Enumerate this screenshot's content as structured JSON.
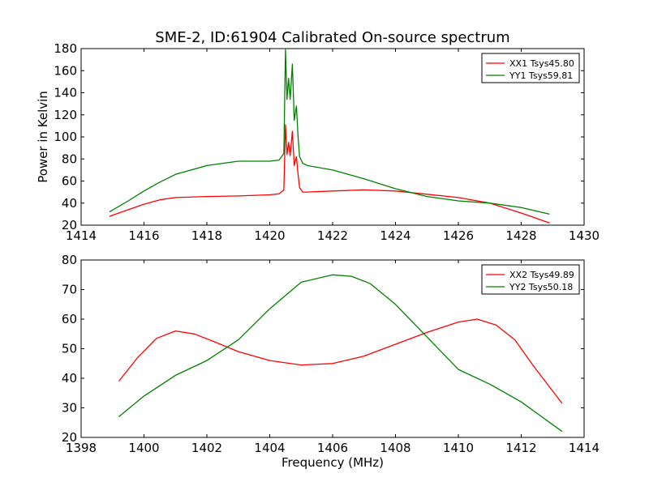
{
  "figure": {
    "title": "SME-2, ID:61904 Calibrated On-source spectrum",
    "xlabel": "Frequency (MHz)",
    "ylabel": "Power in Kelvin"
  },
  "chart_data": [
    {
      "type": "line",
      "title": "SME-2, ID:61904 Calibrated On-source spectrum",
      "xlabel": "",
      "ylabel": "Power in Kelvin",
      "xlim": [
        1414,
        1430
      ],
      "ylim": [
        20,
        180
      ],
      "xticks": [
        1414,
        1416,
        1418,
        1420,
        1422,
        1424,
        1426,
        1428,
        1430
      ],
      "yticks": [
        20,
        40,
        60,
        80,
        100,
        120,
        140,
        160,
        180
      ],
      "grid": false,
      "legend": "top-right",
      "series": [
        {
          "name": "XX1 Tsys45.80",
          "color": "#ff0000",
          "x": [
            1414.9,
            1415.5,
            1416,
            1416.5,
            1417,
            1418,
            1419,
            1420,
            1420.3,
            1420.45,
            1420.5,
            1420.55,
            1420.6,
            1420.65,
            1420.72,
            1420.78,
            1420.85,
            1420.9,
            1420.95,
            1421.05,
            1421.2,
            1422,
            1423,
            1424,
            1425,
            1426,
            1427,
            1428,
            1428.9
          ],
          "y": [
            28,
            34,
            39,
            43,
            45,
            46,
            46.5,
            47.5,
            48.5,
            52,
            111,
            84,
            95,
            83,
            105,
            74,
            82,
            66,
            54,
            50,
            50,
            51,
            52,
            51,
            48,
            45,
            40,
            31,
            22
          ]
        },
        {
          "name": "YY1 Tsys59.81",
          "color": "#008000",
          "x": [
            1414.9,
            1415.5,
            1416,
            1416.5,
            1417,
            1418,
            1419,
            1420,
            1420.3,
            1420.45,
            1420.5,
            1420.55,
            1420.6,
            1420.65,
            1420.72,
            1420.78,
            1420.85,
            1420.9,
            1420.95,
            1421.05,
            1421.2,
            1422,
            1423,
            1424,
            1425,
            1426,
            1427,
            1428,
            1428.9
          ],
          "y": [
            32,
            42,
            51,
            59,
            66,
            74,
            78,
            78,
            79,
            85,
            179,
            134,
            153,
            134,
            166,
            115,
            128,
            100,
            82,
            76,
            74,
            70,
            62,
            53,
            46,
            42,
            40,
            36,
            30
          ]
        }
      ]
    },
    {
      "type": "line",
      "title": "",
      "xlabel": "Frequency (MHz)",
      "ylabel": "",
      "xlim": [
        1398,
        1414
      ],
      "ylim": [
        20,
        80
      ],
      "xticks": [
        1398,
        1400,
        1402,
        1404,
        1406,
        1408,
        1410,
        1412,
        1414
      ],
      "yticks": [
        20,
        30,
        40,
        50,
        60,
        70,
        80
      ],
      "grid": false,
      "legend": "top-right",
      "series": [
        {
          "name": "XX2 Tsys49.89",
          "color": "#ff0000",
          "x": [
            1399.2,
            1399.8,
            1400.4,
            1401,
            1401.6,
            1402.2,
            1403,
            1404,
            1405,
            1406,
            1407,
            1408,
            1409,
            1410,
            1410.6,
            1411.2,
            1411.8,
            1412.4,
            1413.3
          ],
          "y": [
            39,
            47,
            53.5,
            56,
            55,
            52.5,
            49,
            46,
            44.5,
            45,
            47.5,
            51.5,
            55.5,
            59,
            60,
            58,
            53,
            44,
            31.5
          ]
        },
        {
          "name": "YY2 Tsys50.18",
          "color": "#008000",
          "x": [
            1399.2,
            1400,
            1401,
            1402,
            1403,
            1404,
            1405,
            1406,
            1406.6,
            1407.2,
            1408,
            1409,
            1410,
            1411,
            1412,
            1413.3
          ],
          "y": [
            27,
            34,
            41,
            46,
            53,
            63.5,
            72.5,
            75,
            74.5,
            72,
            65,
            54,
            43,
            38,
            32,
            22
          ]
        }
      ]
    }
  ]
}
